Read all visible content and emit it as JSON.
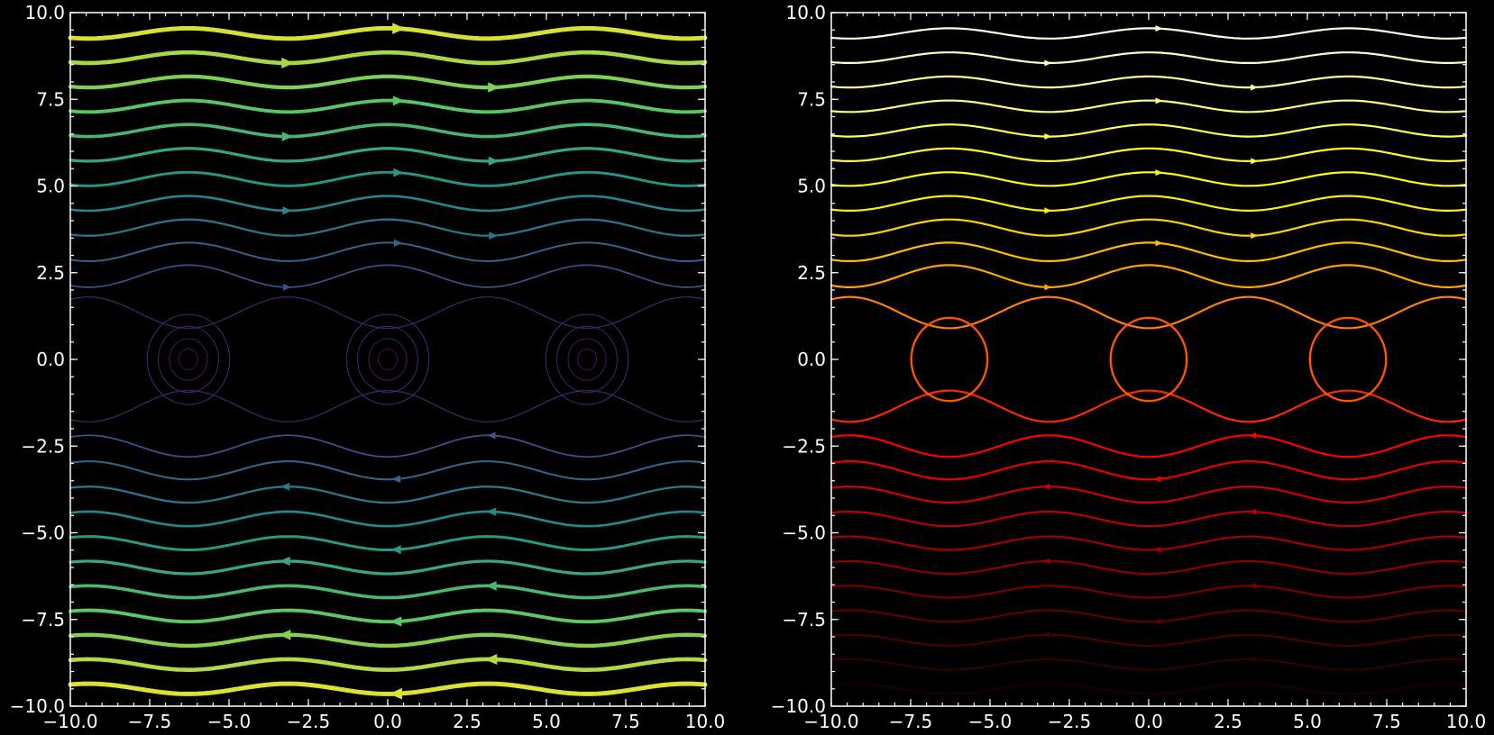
{
  "chart_data": [
    {
      "type": "streamplot",
      "field": "u = 1 - cos(x) + y/2 style shear flow with vortices along y = 0 (periodic in x, period 2π)",
      "xlim": [
        -10,
        10
      ],
      "ylim": [
        -10,
        10
      ],
      "xticks": [
        -10.0,
        -7.5,
        -5.0,
        -2.5,
        0.0,
        2.5,
        5.0,
        7.5,
        10.0
      ],
      "yticks": [
        -10.0,
        -7.5,
        -5.0,
        -2.5,
        0.0,
        2.5,
        5.0,
        7.5,
        10.0
      ],
      "xtick_labels": [
        "−10.0",
        "−7.5",
        "−5.0",
        "−2.5",
        "0.0",
        "2.5",
        "5.0",
        "7.5",
        "10.0"
      ],
      "ytick_labels": [
        "−10.0",
        "−7.5",
        "−5.0",
        "−2.5",
        "0.0",
        "2.5",
        "5.0",
        "7.5",
        "10.0"
      ],
      "colormap": "viridis",
      "color_by": "speed",
      "linewidth_by": "speed",
      "vortex_centers_x": [
        -6.28,
        0.0,
        6.28
      ],
      "grid": false
    },
    {
      "type": "streamplot",
      "xlim": [
        -10,
        10
      ],
      "ylim": [
        -10,
        10
      ],
      "xticks": [
        -10.0,
        -7.5,
        -5.0,
        -2.5,
        0.0,
        2.5,
        5.0,
        7.5,
        10.0
      ],
      "yticks": [
        -10.0,
        -7.5,
        -5.0,
        -2.5,
        0.0,
        2.5,
        5.0,
        7.5,
        10.0
      ],
      "xtick_labels": [
        "−10.0",
        "−7.5",
        "−5.0",
        "−2.5",
        "0.0",
        "2.5",
        "5.0",
        "7.5",
        "10.0"
      ],
      "ytick_labels": [
        "−10.0",
        "−7.5",
        "−5.0",
        "−2.5",
        "0.0",
        "2.5",
        "5.0",
        "7.5",
        "10.0"
      ],
      "colormap": "hot",
      "color_by": "y",
      "linewidth": 2,
      "vortex_centers_x": [
        -6.28,
        0.0,
        6.28
      ],
      "grid": false
    }
  ],
  "colors": {
    "background": "#000000",
    "axes": "#ffffff"
  }
}
